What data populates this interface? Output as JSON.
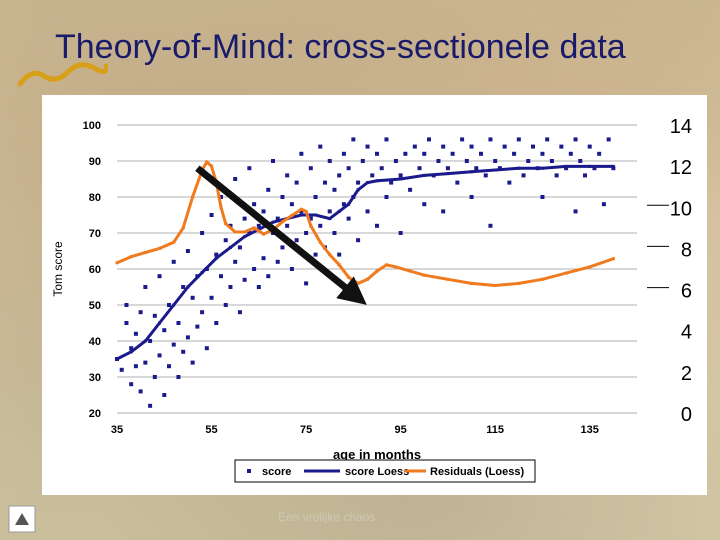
{
  "slide": {
    "title": "Theory-of-Mind: cross-sectionele data",
    "footer": "Een vrolijke chaos"
  },
  "colors": {
    "title": "#1a1a6a",
    "score": "#1a1a8c",
    "loess": "#1a1a8c",
    "residuals": "#f07a1e",
    "arrow": "#111111",
    "grid": "#b0b0b0"
  },
  "chart_data": {
    "type": "scatter",
    "title": "",
    "xlabel": "age in months",
    "ylabel": "Tom score",
    "xlim": [
      35,
      145
    ],
    "ylim": [
      20,
      100
    ],
    "xticks": [
      35,
      55,
      75,
      95,
      115,
      135
    ],
    "yticks": [
      20,
      30,
      40,
      50,
      60,
      70,
      80,
      90,
      100
    ],
    "y2lim": [
      0,
      14
    ],
    "y2ticks": [
      0,
      2,
      4,
      6,
      8,
      10,
      12,
      14
    ],
    "grid": "horizontal",
    "legend_position": "bottom",
    "series": [
      {
        "name": "score",
        "kind": "scatter",
        "points": [
          [
            35,
            35
          ],
          [
            36,
            32
          ],
          [
            37,
            50
          ],
          [
            37,
            45
          ],
          [
            38,
            28
          ],
          [
            38,
            38
          ],
          [
            39,
            33
          ],
          [
            39,
            42
          ],
          [
            40,
            26
          ],
          [
            40,
            48
          ],
          [
            41,
            34
          ],
          [
            41,
            55
          ],
          [
            42,
            40
          ],
          [
            42,
            22
          ],
          [
            43,
            30
          ],
          [
            43,
            47
          ],
          [
            44,
            36
          ],
          [
            44,
            58
          ],
          [
            45,
            43
          ],
          [
            45,
            25
          ],
          [
            46,
            50
          ],
          [
            46,
            33
          ],
          [
            47,
            39
          ],
          [
            47,
            62
          ],
          [
            48,
            45
          ],
          [
            48,
            30
          ],
          [
            49,
            55
          ],
          [
            49,
            37
          ],
          [
            50,
            41
          ],
          [
            50,
            65
          ],
          [
            51,
            52
          ],
          [
            51,
            34
          ],
          [
            52,
            58
          ],
          [
            52,
            44
          ],
          [
            53,
            70
          ],
          [
            53,
            48
          ],
          [
            54,
            60
          ],
          [
            54,
            38
          ],
          [
            55,
            52
          ],
          [
            55,
            75
          ],
          [
            56,
            64
          ],
          [
            56,
            45
          ],
          [
            57,
            58
          ],
          [
            57,
            80
          ],
          [
            58,
            68
          ],
          [
            58,
            50
          ],
          [
            59,
            72
          ],
          [
            59,
            55
          ],
          [
            60,
            62
          ],
          [
            60,
            85
          ],
          [
            61,
            66
          ],
          [
            61,
            48
          ],
          [
            62,
            74
          ],
          [
            62,
            57
          ],
          [
            63,
            70
          ],
          [
            63,
            88
          ],
          [
            64,
            60
          ],
          [
            64,
            78
          ],
          [
            65,
            72
          ],
          [
            65,
            55
          ],
          [
            66,
            76
          ],
          [
            66,
            63
          ],
          [
            67,
            82
          ],
          [
            67,
            58
          ],
          [
            68,
            70
          ],
          [
            68,
            90
          ],
          [
            69,
            74
          ],
          [
            69,
            62
          ],
          [
            70,
            80
          ],
          [
            70,
            66
          ],
          [
            71,
            72
          ],
          [
            71,
            86
          ],
          [
            72,
            78
          ],
          [
            72,
            60
          ],
          [
            73,
            84
          ],
          [
            73,
            68
          ],
          [
            74,
            76
          ],
          [
            74,
            92
          ],
          [
            75,
            70
          ],
          [
            75,
            56
          ],
          [
            76,
            88
          ],
          [
            76,
            74
          ],
          [
            77,
            64
          ],
          [
            77,
            80
          ],
          [
            78,
            72
          ],
          [
            78,
            94
          ],
          [
            79,
            84
          ],
          [
            79,
            66
          ],
          [
            80,
            76
          ],
          [
            80,
            90
          ],
          [
            81,
            70
          ],
          [
            81,
            82
          ],
          [
            82,
            86
          ],
          [
            82,
            64
          ],
          [
            83,
            92
          ],
          [
            83,
            78
          ],
          [
            84,
            74
          ],
          [
            84,
            88
          ],
          [
            85,
            80
          ],
          [
            85,
            96
          ],
          [
            86,
            68
          ],
          [
            86,
            84
          ],
          [
            87,
            90
          ],
          [
            88,
            76
          ],
          [
            88,
            94
          ],
          [
            89,
            86
          ],
          [
            90,
            72
          ],
          [
            90,
            92
          ],
          [
            91,
            88
          ],
          [
            92,
            80
          ],
          [
            92,
            96
          ],
          [
            93,
            84
          ],
          [
            94,
            90
          ],
          [
            95,
            70
          ],
          [
            95,
            86
          ],
          [
            96,
            92
          ],
          [
            97,
            82
          ],
          [
            98,
            94
          ],
          [
            99,
            88
          ],
          [
            100,
            78
          ],
          [
            100,
            92
          ],
          [
            101,
            96
          ],
          [
            102,
            86
          ],
          [
            103,
            90
          ],
          [
            104,
            76
          ],
          [
            104,
            94
          ],
          [
            105,
            88
          ],
          [
            106,
            92
          ],
          [
            107,
            84
          ],
          [
            108,
            96
          ],
          [
            109,
            90
          ],
          [
            110,
            80
          ],
          [
            110,
            94
          ],
          [
            111,
            88
          ],
          [
            112,
            92
          ],
          [
            113,
            86
          ],
          [
            114,
            72
          ],
          [
            114,
            96
          ],
          [
            115,
            90
          ],
          [
            116,
            88
          ],
          [
            117,
            94
          ],
          [
            118,
            84
          ],
          [
            119,
            92
          ],
          [
            120,
            96
          ],
          [
            121,
            86
          ],
          [
            122,
            90
          ],
          [
            123,
            94
          ],
          [
            124,
            88
          ],
          [
            125,
            80
          ],
          [
            125,
            92
          ],
          [
            126,
            96
          ],
          [
            127,
            90
          ],
          [
            128,
            86
          ],
          [
            129,
            94
          ],
          [
            130,
            88
          ],
          [
            131,
            92
          ],
          [
            132,
            76
          ],
          [
            132,
            96
          ],
          [
            133,
            90
          ],
          [
            134,
            86
          ],
          [
            135,
            94
          ],
          [
            136,
            88
          ],
          [
            137,
            92
          ],
          [
            138,
            78
          ],
          [
            139,
            96
          ],
          [
            140,
            88
          ]
        ]
      },
      {
        "name": "score Loess",
        "kind": "line",
        "points": [
          [
            35,
            35
          ],
          [
            38,
            37
          ],
          [
            41,
            40
          ],
          [
            44,
            45
          ],
          [
            47,
            50
          ],
          [
            50,
            55
          ],
          [
            53,
            59
          ],
          [
            56,
            63
          ],
          [
            59,
            66
          ],
          [
            62,
            69
          ],
          [
            65,
            71
          ],
          [
            68,
            73
          ],
          [
            71,
            74
          ],
          [
            74,
            75
          ],
          [
            77,
            75
          ],
          [
            80,
            74
          ],
          [
            82,
            76
          ],
          [
            84,
            78
          ],
          [
            86,
            82
          ],
          [
            88,
            84
          ],
          [
            90,
            84.5
          ],
          [
            95,
            85
          ],
          [
            100,
            86
          ],
          [
            105,
            86.5
          ],
          [
            110,
            87
          ],
          [
            115,
            87.5
          ],
          [
            120,
            88
          ],
          [
            125,
            88
          ],
          [
            130,
            88.5
          ],
          [
            135,
            88.5
          ],
          [
            140,
            88.5
          ]
        ]
      },
      {
        "name": "Residuals (Loess)",
        "kind": "line",
        "axis": "right",
        "points": [
          [
            35,
            7.3
          ],
          [
            38,
            7.6
          ],
          [
            41,
            7.8
          ],
          [
            44,
            8.0
          ],
          [
            47,
            8.3
          ],
          [
            49,
            9.0
          ],
          [
            51,
            10.5
          ],
          [
            53,
            11.8
          ],
          [
            54,
            12.2
          ],
          [
            55,
            12.0
          ],
          [
            56,
            11.2
          ],
          [
            57,
            10.0
          ],
          [
            58,
            9.2
          ],
          [
            60,
            8.8
          ],
          [
            62,
            8.8
          ],
          [
            64,
            9.0
          ],
          [
            66,
            8.7
          ],
          [
            68,
            8.9
          ],
          [
            70,
            9.3
          ],
          [
            72,
            9.6
          ],
          [
            74,
            9.9
          ],
          [
            75,
            9.8
          ],
          [
            76,
            9.1
          ],
          [
            78,
            8.3
          ],
          [
            80,
            7.7
          ],
          [
            82,
            7.2
          ],
          [
            84,
            6.6
          ],
          [
            86,
            6.3
          ],
          [
            88,
            6.5
          ],
          [
            90,
            6.9
          ],
          [
            92,
            7.2
          ],
          [
            94,
            7.1
          ],
          [
            97,
            6.9
          ],
          [
            100,
            6.7
          ],
          [
            105,
            6.5
          ],
          [
            110,
            6.3
          ],
          [
            115,
            6.2
          ],
          [
            120,
            6.3
          ],
          [
            125,
            6.5
          ],
          [
            130,
            6.8
          ],
          [
            135,
            7.1
          ],
          [
            140,
            7.5
          ]
        ]
      }
    ],
    "annotations": [
      {
        "type": "arrow",
        "from": [
          52,
          88
        ],
        "to": [
          86,
          52
        ]
      }
    ]
  }
}
